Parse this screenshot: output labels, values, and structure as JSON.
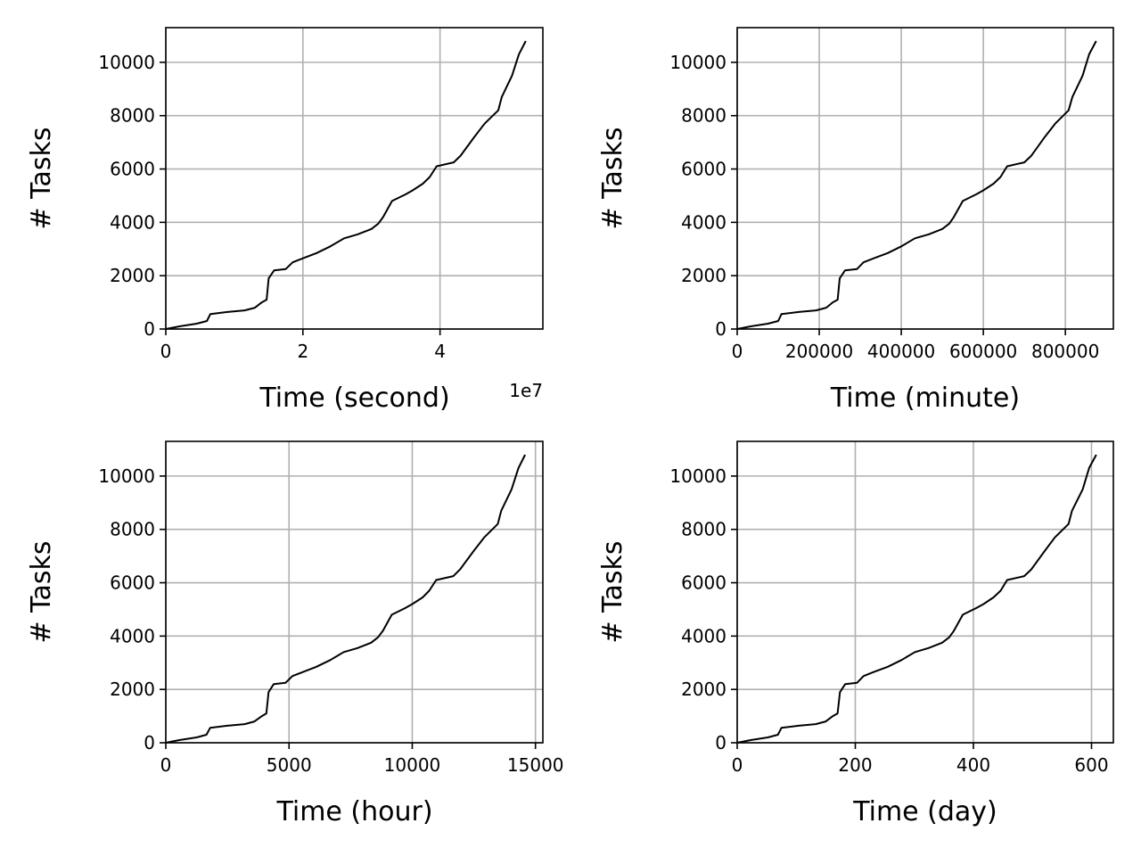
{
  "chart_data": [
    {
      "type": "line",
      "xlabel": "Time (second)",
      "ylabel": "# Tasks",
      "xlim": [
        0,
        55000000
      ],
      "ylim": [
        0,
        11300
      ],
      "x_scale": 10000000,
      "x_offset_label": "1e7",
      "xticks": [
        0,
        20000000,
        40000000
      ],
      "xtick_labels": [
        "0",
        "2",
        "4"
      ],
      "yticks": [
        0,
        2000,
        4000,
        6000,
        8000,
        10000
      ],
      "ytick_labels": [
        "0",
        "2000",
        "4000",
        "6000",
        "8000",
        "10000"
      ],
      "grid": true,
      "series": [
        {
          "x": [
            0,
            2000000,
            4500000,
            6000000,
            6500000,
            9000000,
            11500000,
            13000000,
            14000000,
            14700000,
            15000000,
            15800000,
            17500000,
            18500000,
            20000000,
            22000000,
            24000000,
            26000000,
            28000000,
            30000000,
            31000000,
            31700000,
            33000000,
            35000000,
            36000000,
            37500000,
            38500000,
            39500000,
            42000000,
            43000000,
            45000000,
            46500000,
            48500000,
            49000000,
            50500000,
            51500000,
            52500000
          ],
          "y": [
            0,
            100,
            200,
            300,
            560,
            640,
            700,
            800,
            1000,
            1100,
            1900,
            2200,
            2250,
            2500,
            2650,
            2850,
            3100,
            3400,
            3550,
            3750,
            3950,
            4200,
            4800,
            5050,
            5200,
            5450,
            5700,
            6100,
            6250,
            6500,
            7200,
            7700,
            8200,
            8700,
            9500,
            10300,
            10800
          ]
        }
      ]
    },
    {
      "type": "line",
      "xlabel": "Time (minute)",
      "ylabel": "# Tasks",
      "xlim": [
        0,
        917000
      ],
      "ylim": [
        0,
        11300
      ],
      "x_scale": 1,
      "xticks": [
        0,
        200000,
        400000,
        600000,
        800000
      ],
      "xtick_labels": [
        "0",
        "200000",
        "400000",
        "600000",
        "800000"
      ],
      "yticks": [
        0,
        2000,
        4000,
        6000,
        8000,
        10000
      ],
      "ytick_labels": [
        "0",
        "2000",
        "4000",
        "6000",
        "8000",
        "10000"
      ],
      "grid": true,
      "series": [
        {
          "x": [
            0,
            33000,
            75000,
            100000,
            108000,
            150000,
            192000,
            217000,
            233000,
            245000,
            250000,
            263000,
            292000,
            308000,
            333000,
            367000,
            400000,
            433000,
            467000,
            500000,
            517000,
            528000,
            550000,
            583000,
            600000,
            625000,
            642000,
            658000,
            700000,
            717000,
            750000,
            775000,
            808000,
            817000,
            842000,
            858000,
            875000
          ],
          "y": [
            0,
            100,
            200,
            300,
            560,
            640,
            700,
            800,
            1000,
            1100,
            1900,
            2200,
            2250,
            2500,
            2650,
            2850,
            3100,
            3400,
            3550,
            3750,
            3950,
            4200,
            4800,
            5050,
            5200,
            5450,
            5700,
            6100,
            6250,
            6500,
            7200,
            7700,
            8200,
            8700,
            9500,
            10300,
            10800
          ]
        }
      ]
    },
    {
      "type": "line",
      "xlabel": "Time (hour)",
      "ylabel": "# Tasks",
      "xlim": [
        0,
        15300
      ],
      "ylim": [
        0,
        11300
      ],
      "x_scale": 1,
      "xticks": [
        0,
        5000,
        10000,
        15000
      ],
      "xtick_labels": [
        "0",
        "5000",
        "10000",
        "15000"
      ],
      "yticks": [
        0,
        2000,
        4000,
        6000,
        8000,
        10000
      ],
      "ytick_labels": [
        "0",
        "2000",
        "4000",
        "6000",
        "8000",
        "10000"
      ],
      "grid": true,
      "series": [
        {
          "x": [
            0,
            550,
            1250,
            1650,
            1800,
            2500,
            3200,
            3600,
            3900,
            4080,
            4170,
            4380,
            4860,
            5140,
            5560,
            6110,
            6670,
            7220,
            7780,
            8330,
            8610,
            8810,
            9170,
            9720,
            10000,
            10420,
            10690,
            10970,
            11670,
            11940,
            12500,
            12920,
            13470,
            13610,
            14030,
            14310,
            14580
          ],
          "y": [
            0,
            100,
            200,
            300,
            560,
            640,
            700,
            800,
            1000,
            1100,
            1900,
            2200,
            2250,
            2500,
            2650,
            2850,
            3100,
            3400,
            3550,
            3750,
            3950,
            4200,
            4800,
            5050,
            5200,
            5450,
            5700,
            6100,
            6250,
            6500,
            7200,
            7700,
            8200,
            8700,
            9500,
            10300,
            10800
          ]
        }
      ]
    },
    {
      "type": "line",
      "xlabel": "Time (day)",
      "ylabel": "# Tasks",
      "xlim": [
        0,
        637
      ],
      "ylim": [
        0,
        11300
      ],
      "x_scale": 1,
      "xticks": [
        0,
        200,
        400,
        600
      ],
      "xtick_labels": [
        "0",
        "200",
        "400",
        "600"
      ],
      "yticks": [
        0,
        2000,
        4000,
        6000,
        8000,
        10000
      ],
      "ytick_labels": [
        "0",
        "2000",
        "4000",
        "6000",
        "8000",
        "10000"
      ],
      "grid": true,
      "series": [
        {
          "x": [
            0,
            23,
            52,
            69,
            75,
            104,
            133,
            150,
            162,
            170,
            174,
            183,
            203,
            214,
            231,
            255,
            278,
            301,
            324,
            347,
            359,
            367,
            382,
            405,
            417,
            434,
            446,
            457,
            486,
            498,
            521,
            538,
            561,
            567,
            585,
            596,
            608
          ],
          "y": [
            0,
            100,
            200,
            300,
            560,
            640,
            700,
            800,
            1000,
            1100,
            1900,
            2200,
            2250,
            2500,
            2650,
            2850,
            3100,
            3400,
            3550,
            3750,
            3950,
            4200,
            4800,
            5050,
            5200,
            5450,
            5700,
            6100,
            6250,
            6500,
            7200,
            7700,
            8200,
            8700,
            9500,
            10300,
            10800
          ]
        }
      ]
    }
  ],
  "colors": {
    "line": "#000000",
    "grid": "#b0b0b0",
    "frame": "#000000",
    "background": "#ffffff"
  }
}
